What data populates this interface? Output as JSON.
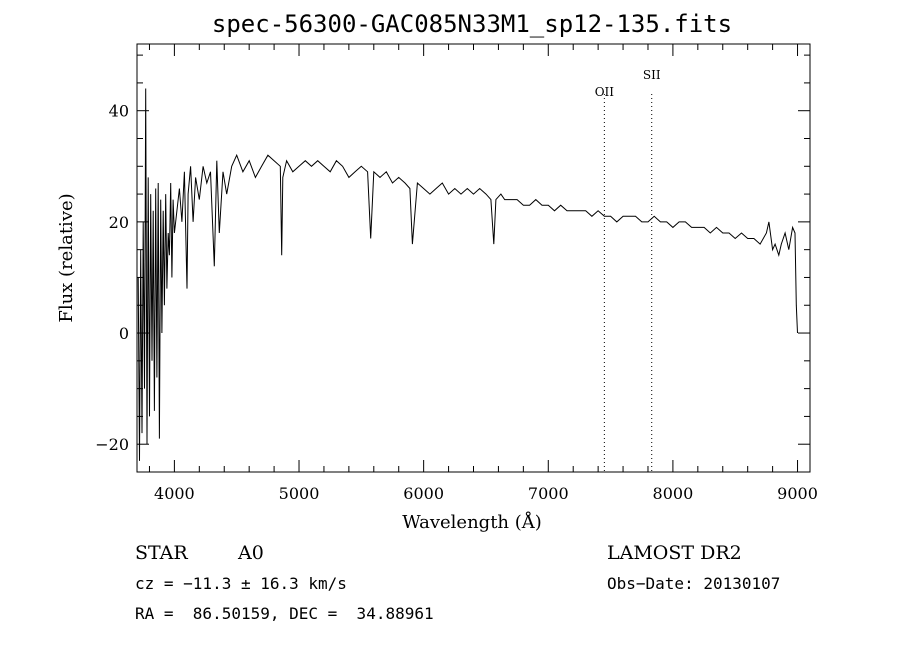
{
  "chart_data": {
    "type": "line",
    "title": "spec-56300-GAC085N33M1_sp12-135.fits",
    "xlabel": "Wavelength (Å)",
    "ylabel": "Flux (relative)",
    "xlim": [
      3700,
      9100
    ],
    "ylim": [
      -25,
      52
    ],
    "x_ticks": [
      4000,
      5000,
      6000,
      7000,
      8000,
      9000
    ],
    "x_tick_labels": [
      "4000",
      "5000",
      "6000",
      "7000",
      "8000",
      "9000"
    ],
    "y_ticks": [
      -20,
      0,
      20,
      40
    ],
    "y_tick_labels": [
      "−20",
      "0",
      "20",
      "40"
    ],
    "grid": false,
    "line_markers": [
      {
        "label": "OII",
        "x": 7450
      },
      {
        "label": "SII",
        "x": 7830
      }
    ],
    "series": [
      {
        "x": [
          3710,
          3720,
          3730,
          3740,
          3750,
          3760,
          3770,
          3780,
          3790,
          3800,
          3810,
          3820,
          3830,
          3840,
          3850,
          3860,
          3870,
          3880,
          3890,
          3900,
          3910,
          3920,
          3930,
          3940,
          3950,
          3960,
          3970,
          3980,
          3990,
          4000,
          4020,
          4040,
          4060,
          4080,
          4101,
          4110,
          4130,
          4150,
          4170,
          4200,
          4230,
          4260,
          4290,
          4320,
          4340,
          4360,
          4390,
          4420,
          4460,
          4500,
          4550,
          4600,
          4650,
          4700,
          4750,
          4800,
          4850,
          4861,
          4870,
          4900,
          4950,
          5000,
          5050,
          5100,
          5150,
          5200,
          5250,
          5300,
          5350,
          5400,
          5450,
          5500,
          5550,
          5575,
          5600,
          5650,
          5700,
          5750,
          5800,
          5850,
          5890,
          5910,
          5950,
          6000,
          6050,
          6100,
          6150,
          6200,
          6250,
          6300,
          6350,
          6400,
          6450,
          6500,
          6540,
          6563,
          6580,
          6620,
          6650,
          6700,
          6750,
          6800,
          6850,
          6900,
          6950,
          7000,
          7050,
          7100,
          7150,
          7200,
          7250,
          7300,
          7350,
          7400,
          7450,
          7500,
          7550,
          7600,
          7650,
          7700,
          7750,
          7800,
          7850,
          7900,
          7950,
          8000,
          8050,
          8100,
          8150,
          8200,
          8250,
          8300,
          8350,
          8400,
          8450,
          8500,
          8550,
          8600,
          8650,
          8700,
          8750,
          8770,
          8800,
          8820,
          8850,
          8870,
          8900,
          8930,
          8960,
          8980,
          8990,
          9000
        ],
        "y": [
          10,
          -23,
          15,
          -18,
          20,
          -10,
          44,
          -20,
          28,
          -15,
          25,
          -5,
          22,
          -14,
          26,
          -8,
          27,
          -19,
          24,
          0,
          22,
          5,
          25,
          8,
          18,
          14,
          27,
          10,
          24,
          18,
          22,
          26,
          20,
          29,
          8,
          25,
          30,
          20,
          28,
          24,
          30,
          27,
          29,
          12,
          31,
          18,
          29,
          25,
          30,
          32,
          29,
          31,
          28,
          30,
          32,
          31,
          30,
          14,
          28,
          31,
          29,
          30,
          31,
          30,
          31,
          30,
          29,
          31,
          30,
          28,
          29,
          30,
          29,
          17,
          29,
          28,
          29,
          27,
          28,
          27,
          26,
          16,
          27,
          26,
          25,
          26,
          27,
          25,
          26,
          25,
          26,
          25,
          26,
          25,
          24,
          16,
          24,
          25,
          24,
          24,
          24,
          23,
          23,
          24,
          23,
          23,
          22,
          23,
          22,
          22,
          22,
          22,
          21,
          22,
          21,
          21,
          20,
          21,
          21,
          21,
          20,
          20,
          21,
          20,
          20,
          19,
          20,
          20,
          19,
          19,
          19,
          18,
          19,
          18,
          18,
          17,
          18,
          17,
          17,
          16,
          18,
          20,
          15,
          16,
          14,
          16,
          18,
          15,
          19,
          18,
          5,
          0
        ]
      }
    ]
  },
  "annotations": {
    "object_class": "STAR",
    "subclass": "A0",
    "survey": "LAMOST DR2",
    "cz": "cz = −11.3 ± 16.3 km/s",
    "obs_date": "Obs−Date: 20130107",
    "coords": "RA =  86.50159, DEC =  34.88961"
  }
}
